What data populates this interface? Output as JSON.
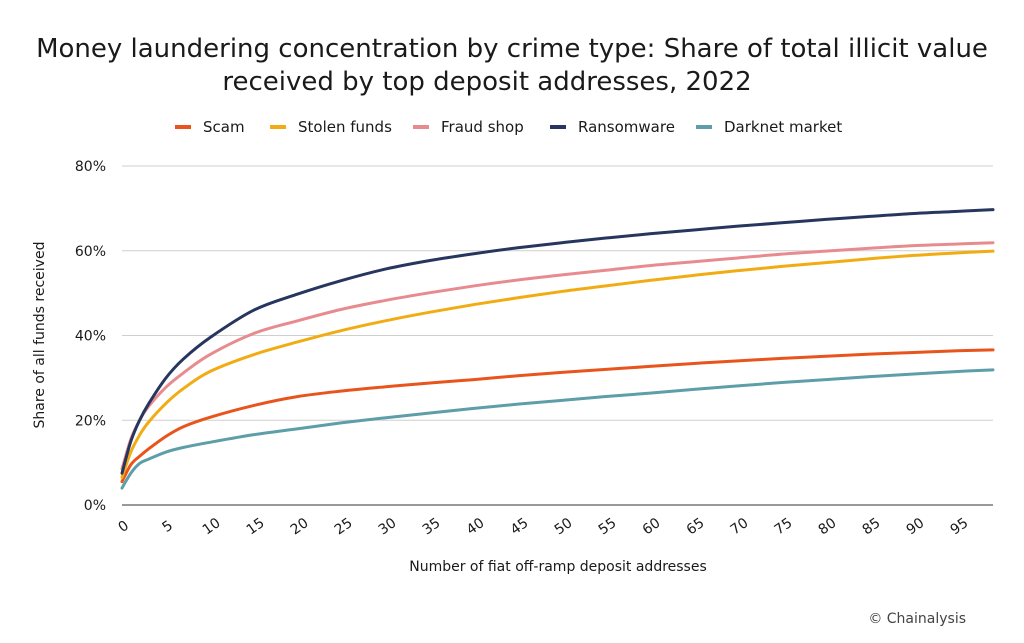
{
  "chart_data": {
    "type": "line",
    "title_lines": [
      "Money laundering concentration by crime type: Share of total illicit value",
      "received by top deposit addresses, 2022"
    ],
    "xlabel": "Number of fiat off-ramp deposit addresses",
    "ylabel": "Share of all funds received",
    "xlim": [
      0,
      99
    ],
    "ylim": [
      0,
      80
    ],
    "x_ticks": [
      "0",
      "5",
      "10",
      "15",
      "20",
      "25",
      "30",
      "35",
      "40",
      "45",
      "50",
      "55",
      "60",
      "65",
      "70",
      "75",
      "80",
      "85",
      "90",
      "95"
    ],
    "y_ticks": [
      "0%",
      "20%",
      "40%",
      "60%",
      "80%"
    ],
    "y_tick_values": [
      0,
      20,
      40,
      60,
      80
    ],
    "grid": true,
    "legend_placement": "top",
    "x": [
      0,
      1,
      2,
      3,
      5,
      7,
      10,
      15,
      20,
      25,
      30,
      35,
      40,
      45,
      50,
      55,
      60,
      65,
      70,
      75,
      80,
      85,
      90,
      95,
      99
    ],
    "series": [
      {
        "name": "Scam",
        "color": "#E8541C",
        "values": [
          5.5,
          9.5,
          11.5,
          13.2,
          16.2,
          18.5,
          20.7,
          23.5,
          25.6,
          26.9,
          27.9,
          28.8,
          29.6,
          30.5,
          31.3,
          32.0,
          32.7,
          33.4,
          34.0,
          34.6,
          35.1,
          35.6,
          36.0,
          36.4,
          36.6
        ]
      },
      {
        "name": "Stolen funds",
        "color": "#F2AC13",
        "values": [
          6.5,
          12.5,
          16.5,
          19.5,
          24.0,
          27.5,
          31.5,
          35.5,
          38.5,
          41.2,
          43.5,
          45.5,
          47.3,
          48.9,
          50.4,
          51.7,
          53.0,
          54.2,
          55.3,
          56.3,
          57.2,
          58.1,
          58.9,
          59.5,
          59.9
        ]
      },
      {
        "name": "Fraud shop",
        "color": "#E88B8F",
        "values": [
          8.5,
          15.5,
          20.0,
          23.2,
          27.8,
          31.2,
          35.5,
          40.5,
          43.5,
          46.2,
          48.3,
          50.1,
          51.7,
          53.1,
          54.3,
          55.4,
          56.5,
          57.4,
          58.3,
          59.2,
          59.9,
          60.6,
          61.2,
          61.6,
          61.9
        ]
      },
      {
        "name": "Ransomware",
        "color": "#26365E",
        "values": [
          7.5,
          15.0,
          20.0,
          23.8,
          30.0,
          34.5,
          39.5,
          46.0,
          49.8,
          53.0,
          55.7,
          57.7,
          59.3,
          60.7,
          61.9,
          63.0,
          64.0,
          64.9,
          65.8,
          66.6,
          67.4,
          68.1,
          68.8,
          69.3,
          69.7
        ]
      },
      {
        "name": "Darknet market",
        "color": "#5D9EA8",
        "values": [
          4.0,
          7.5,
          9.8,
          10.8,
          12.5,
          13.6,
          14.8,
          16.6,
          18.0,
          19.4,
          20.6,
          21.7,
          22.8,
          23.8,
          24.7,
          25.6,
          26.4,
          27.3,
          28.1,
          28.9,
          29.6,
          30.3,
          30.9,
          31.5,
          31.9
        ]
      }
    ],
    "source": "© Chainalysis"
  }
}
